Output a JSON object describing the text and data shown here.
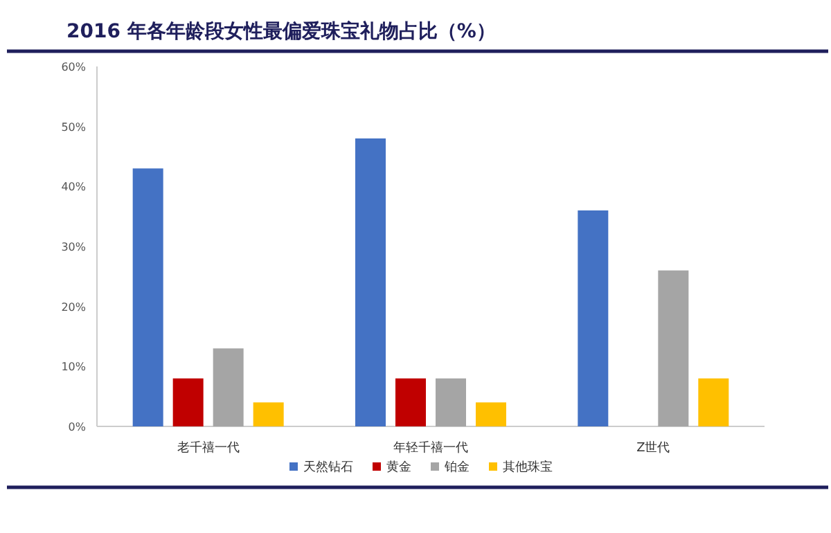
{
  "chart_data": {
    "type": "bar",
    "title": "2016 年各年龄段女性最偏爱珠宝礼物占比（%）",
    "categories": [
      "老千禧一代",
      "年轻千禧一代",
      "Z世代"
    ],
    "series": [
      {
        "name": "天然钻石",
        "color": "#4472c4",
        "values": [
          43,
          48,
          36
        ]
      },
      {
        "name": "黄金",
        "color": "#c00000",
        "values": [
          8,
          8,
          null
        ]
      },
      {
        "name": "铂金",
        "color": "#a5a5a5",
        "values": [
          13,
          8,
          26
        ]
      },
      {
        "name": "其他珠宝",
        "color": "#ffc000",
        "values": [
          4,
          4,
          8
        ]
      }
    ],
    "ylim": [
      0,
      60
    ],
    "yticks": [
      {
        "value": 0,
        "label": "0%"
      },
      {
        "value": 10,
        "label": "10%"
      },
      {
        "value": 20,
        "label": "20%"
      },
      {
        "value": 30,
        "label": "30%"
      },
      {
        "value": 40,
        "label": "40%"
      },
      {
        "value": 50,
        "label": "50%"
      },
      {
        "value": 60,
        "label": "60%"
      }
    ],
    "legend": "bottom",
    "grid": false
  }
}
